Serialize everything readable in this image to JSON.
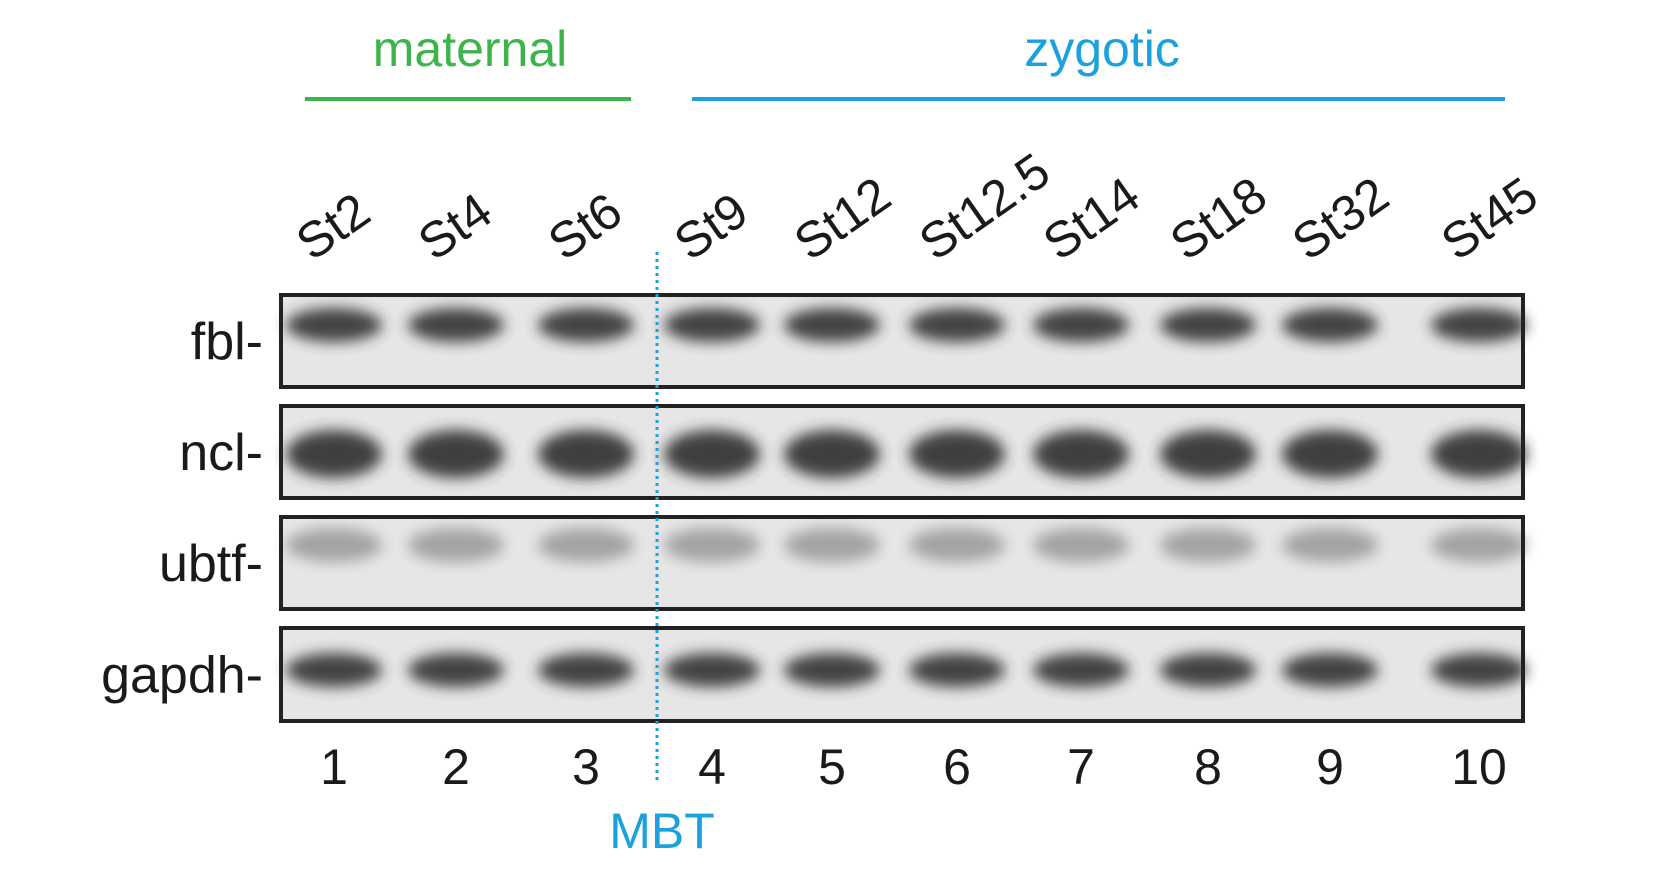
{
  "groups": [
    {
      "label": "maternal"
    },
    {
      "label": "zygotic"
    }
  ],
  "lanes": [
    {
      "stage": "St2",
      "number": 1
    },
    {
      "stage": "St4",
      "number": 2
    },
    {
      "stage": "St6",
      "number": 3
    },
    {
      "stage": "St9",
      "number": 4
    },
    {
      "stage": "St12",
      "number": 5
    },
    {
      "stage": "St12.5",
      "number": 6
    },
    {
      "stage": "St14",
      "number": 7
    },
    {
      "stage": "St18",
      "number": 8
    },
    {
      "stage": "St32",
      "number": 9
    },
    {
      "stage": "St45",
      "number": 10
    }
  ],
  "genes": [
    "fbl-",
    "ncl-",
    "ubtf-",
    "gapdh-"
  ],
  "boundary_label": "MBT"
}
